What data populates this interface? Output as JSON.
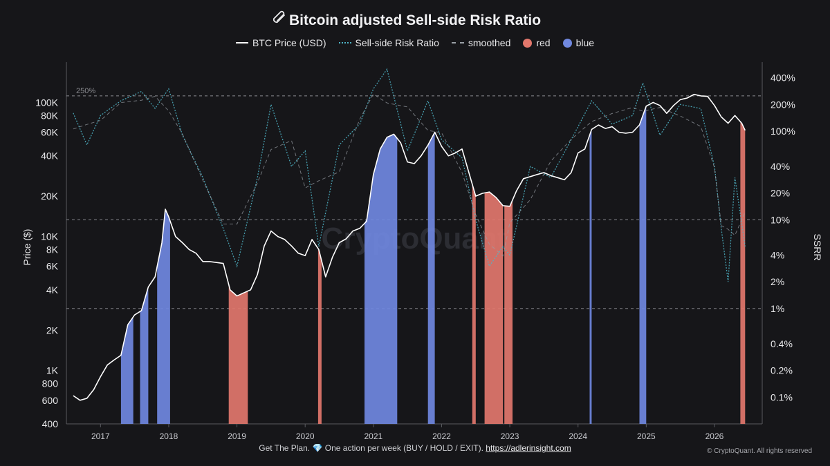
{
  "chart_data": {
    "type": "line",
    "title": "Bitcoin adjusted Sell-side Risk Ratio",
    "legend": {
      "placement": "top-center",
      "entries": [
        {
          "name": "BTC Price (USD)",
          "style": "solid",
          "color": "#ffffff"
        },
        {
          "name": "Sell-side Risk Ratio",
          "style": "dotted",
          "color": "#4fb5c8"
        },
        {
          "name": "smoothed",
          "style": "dashed",
          "color": "#9aa0a6"
        },
        {
          "name": "red",
          "style": "circle",
          "color": "#e2776c"
        },
        {
          "name": "blue",
          "style": "circle",
          "color": "#7088df"
        }
      ]
    },
    "ylabel_left": "Price ($)",
    "ylabel_right": "SSRR",
    "y_left_scale": "log",
    "y_left_range": [
      400,
      200000
    ],
    "y_left_ticks": [
      {
        "v": 400,
        "label": "400"
      },
      {
        "v": 600,
        "label": "600"
      },
      {
        "v": 800,
        "label": "800"
      },
      {
        "v": 1000,
        "label": "1K"
      },
      {
        "v": 2000,
        "label": "2K"
      },
      {
        "v": 4000,
        "label": "4K"
      },
      {
        "v": 6000,
        "label": "6K"
      },
      {
        "v": 8000,
        "label": "8K"
      },
      {
        "v": 10000,
        "label": "10K"
      },
      {
        "v": 20000,
        "label": "20K"
      },
      {
        "v": 40000,
        "label": "40K"
      },
      {
        "v": 60000,
        "label": "60K"
      },
      {
        "v": 80000,
        "label": "80K"
      },
      {
        "v": 100000,
        "label": "100K"
      }
    ],
    "y_right_scale": "log",
    "y_right_range_pct": [
      0.05,
      600
    ],
    "y_right_ticks": [
      {
        "v": 0.1,
        "label": "0.1%"
      },
      {
        "v": 0.2,
        "label": "0.2%"
      },
      {
        "v": 0.4,
        "label": "0.4%"
      },
      {
        "v": 1,
        "label": "1%"
      },
      {
        "v": 2,
        "label": "2%"
      },
      {
        "v": 4,
        "label": "4%"
      },
      {
        "v": 10,
        "label": "10%"
      },
      {
        "v": 20,
        "label": "20%"
      },
      {
        "v": 40,
        "label": "40%"
      },
      {
        "v": 100,
        "label": "100%"
      },
      {
        "v": 200,
        "label": "200%"
      },
      {
        "v": 400,
        "label": "400%"
      }
    ],
    "x_range": [
      2016.5,
      2026.7
    ],
    "x_ticks": [
      "2017",
      "2018",
      "2019",
      "2020",
      "2021",
      "2022",
      "2023",
      "2024",
      "2025",
      "2026"
    ],
    "reference_lines_pct": [
      {
        "v": 250,
        "label": "250%"
      },
      {
        "v": 10,
        "label": ""
      },
      {
        "v": 1,
        "label": ""
      }
    ],
    "btc_price": {
      "x": [
        2016.6,
        2016.7,
        2016.8,
        2016.9,
        2017.0,
        2017.1,
        2017.2,
        2017.3,
        2017.4,
        2017.5,
        2017.6,
        2017.7,
        2017.8,
        2017.9,
        2017.95,
        2018.0,
        2018.1,
        2018.2,
        2018.3,
        2018.4,
        2018.5,
        2018.6,
        2018.7,
        2018.8,
        2018.9,
        2019.0,
        2019.1,
        2019.2,
        2019.3,
        2019.4,
        2019.5,
        2019.6,
        2019.7,
        2019.8,
        2019.9,
        2020.0,
        2020.1,
        2020.2,
        2020.3,
        2020.4,
        2020.5,
        2020.6,
        2020.7,
        2020.8,
        2020.9,
        2021.0,
        2021.1,
        2021.2,
        2021.3,
        2021.4,
        2021.5,
        2021.6,
        2021.7,
        2021.8,
        2021.9,
        2022.0,
        2022.1,
        2022.2,
        2022.3,
        2022.4,
        2022.5,
        2022.6,
        2022.7,
        2022.8,
        2022.9,
        2023.0,
        2023.1,
        2023.2,
        2023.3,
        2023.4,
        2023.5,
        2023.6,
        2023.7,
        2023.8,
        2023.9,
        2024.0,
        2024.1,
        2024.2,
        2024.3,
        2024.4,
        2024.5,
        2024.6,
        2024.7,
        2024.8,
        2024.9,
        2025.0,
        2025.1,
        2025.2,
        2025.3,
        2025.4,
        2025.5,
        2025.6,
        2025.7,
        2025.8,
        2025.9,
        2026.0,
        2026.1,
        2026.2,
        2026.3,
        2026.4,
        2026.45
      ],
      "y": [
        650,
        600,
        620,
        720,
        900,
        1100,
        1200,
        1300,
        2200,
        2600,
        2800,
        4200,
        5000,
        9000,
        16000,
        14000,
        10000,
        9000,
        8000,
        7500,
        6500,
        6500,
        6400,
        6300,
        4000,
        3600,
        3800,
        4000,
        5200,
        8500,
        11000,
        10000,
        9500,
        8500,
        7500,
        7200,
        9500,
        8000,
        5000,
        7000,
        9000,
        9600,
        11000,
        11500,
        13000,
        29000,
        45000,
        55000,
        58000,
        50000,
        36000,
        35000,
        40000,
        48000,
        60000,
        47000,
        40000,
        42000,
        45000,
        30000,
        20000,
        21000,
        21500,
        19500,
        17000,
        16800,
        22000,
        27000,
        28000,
        29000,
        30000,
        28500,
        27500,
        26500,
        30000,
        42000,
        45000,
        63000,
        68000,
        64000,
        66000,
        60000,
        59000,
        60000,
        68000,
        94000,
        100000,
        95000,
        83000,
        95000,
        105000,
        108000,
        115000,
        112000,
        111000,
        95000,
        78000,
        70000,
        80000,
        70000,
        62000
      ]
    },
    "series_ssrr_pct_samples": [
      {
        "x": 2016.6,
        "v": 160
      },
      {
        "x": 2016.8,
        "v": 70
      },
      {
        "x": 2017.0,
        "v": 150
      },
      {
        "x": 2017.3,
        "v": 220
      },
      {
        "x": 2017.6,
        "v": 280
      },
      {
        "x": 2017.8,
        "v": 180
      },
      {
        "x": 2018.0,
        "v": 300
      },
      {
        "x": 2018.2,
        "v": 90
      },
      {
        "x": 2018.5,
        "v": 30
      },
      {
        "x": 2018.8,
        "v": 8
      },
      {
        "x": 2019.0,
        "v": 3
      },
      {
        "x": 2019.3,
        "v": 30
      },
      {
        "x": 2019.5,
        "v": 200
      },
      {
        "x": 2019.8,
        "v": 40
      },
      {
        "x": 2020.0,
        "v": 60
      },
      {
        "x": 2020.2,
        "v": 5
      },
      {
        "x": 2020.5,
        "v": 70
      },
      {
        "x": 2020.8,
        "v": 120
      },
      {
        "x": 2021.0,
        "v": 300
      },
      {
        "x": 2021.2,
        "v": 500
      },
      {
        "x": 2021.5,
        "v": 60
      },
      {
        "x": 2021.8,
        "v": 220
      },
      {
        "x": 2022.0,
        "v": 80
      },
      {
        "x": 2022.3,
        "v": 50
      },
      {
        "x": 2022.5,
        "v": 10
      },
      {
        "x": 2022.7,
        "v": 3
      },
      {
        "x": 2022.9,
        "v": 5
      },
      {
        "x": 2023.0,
        "v": 4
      },
      {
        "x": 2023.3,
        "v": 40
      },
      {
        "x": 2023.6,
        "v": 30
      },
      {
        "x": 2023.9,
        "v": 80
      },
      {
        "x": 2024.2,
        "v": 220
      },
      {
        "x": 2024.5,
        "v": 120
      },
      {
        "x": 2024.8,
        "v": 150
      },
      {
        "x": 2024.95,
        "v": 350
      },
      {
        "x": 2025.2,
        "v": 90
      },
      {
        "x": 2025.5,
        "v": 200
      },
      {
        "x": 2025.8,
        "v": 180
      },
      {
        "x": 2026.0,
        "v": 40
      },
      {
        "x": 2026.1,
        "v": 8
      },
      {
        "x": 2026.2,
        "v": 2
      },
      {
        "x": 2026.3,
        "v": 30
      },
      {
        "x": 2026.45,
        "v": 5
      }
    ],
    "blue_bands": [
      [
        2017.3,
        2017.48
      ],
      [
        2017.58,
        2017.7
      ],
      [
        2017.83,
        2018.02
      ],
      [
        2020.87,
        2021.35
      ],
      [
        2021.8,
        2021.9
      ],
      [
        2024.17,
        2024.2
      ],
      [
        2024.9,
        2025.0
      ]
    ],
    "red_bands": [
      [
        2018.88,
        2019.16
      ],
      [
        2020.19,
        2020.24
      ],
      [
        2022.45,
        2022.5
      ],
      [
        2022.63,
        2022.9
      ],
      [
        2022.92,
        2023.04
      ]
    ],
    "red_latest": [
      [
        2026.38,
        2026.45
      ]
    ]
  },
  "footer": {
    "cta": "Get The Plan.",
    "gem": "💎",
    "tagline": "One action per week (BUY / HOLD / EXIT).",
    "link": "https://adlerinsight.com"
  },
  "credit": "© CryptoQuant. All rights reserved",
  "watermark": "CryptoQuant"
}
